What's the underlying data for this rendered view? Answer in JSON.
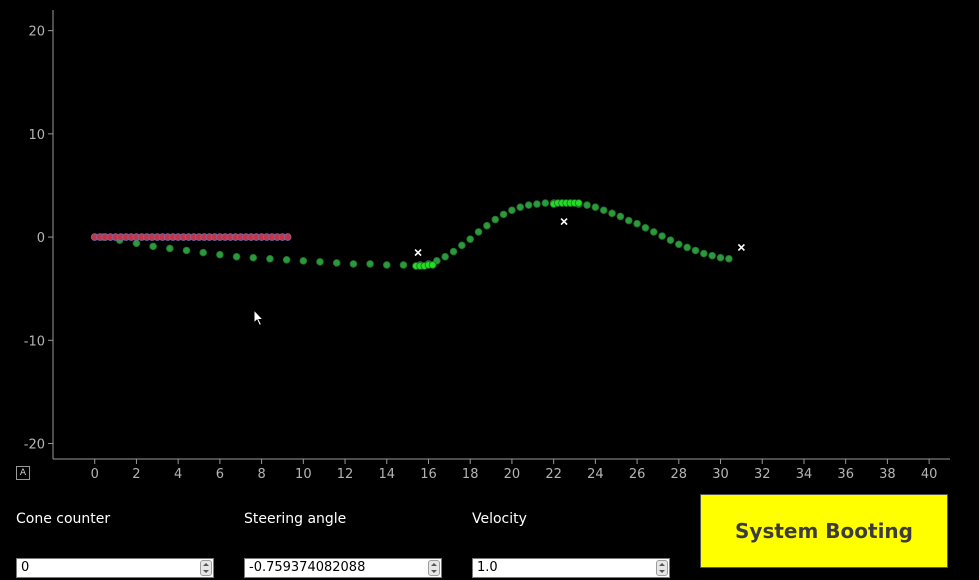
{
  "chart_data": {
    "type": "scatter",
    "xlim": [
      -2,
      41
    ],
    "ylim": [
      -21.5,
      22
    ],
    "x_ticks": [
      0,
      2,
      4,
      6,
      8,
      10,
      12,
      14,
      16,
      18,
      20,
      22,
      24,
      26,
      28,
      30,
      32,
      34,
      36,
      38,
      40
    ],
    "y_ticks": [
      20,
      10,
      0,
      -10,
      -20
    ],
    "grid": false,
    "series": [
      {
        "marker": "circle",
        "color": "#2a9a3a",
        "x": [
          0.4,
          1.2,
          2.0,
          2.8,
          3.6,
          4.4,
          5.2,
          6.0,
          6.8,
          7.6,
          8.4,
          9.2,
          10.0,
          10.8,
          11.6,
          12.4,
          13.2,
          14.0,
          14.8,
          15.6,
          16.0,
          16.4,
          16.8,
          17.2,
          17.6,
          18.0,
          18.4,
          18.8,
          19.2,
          19.6,
          20.0,
          20.4,
          20.8,
          21.2,
          21.6,
          22.0,
          22.4,
          22.8,
          23.2,
          23.6,
          24.0,
          24.4,
          24.8,
          25.2,
          25.6,
          26.0,
          26.4,
          26.8,
          27.2,
          27.6,
          28.0,
          28.4,
          28.8,
          29.2,
          29.6,
          30.0,
          30.4
        ],
        "y": [
          0.0,
          -0.3,
          -0.6,
          -0.9,
          -1.1,
          -1.3,
          -1.5,
          -1.7,
          -1.9,
          -2.0,
          -2.1,
          -2.2,
          -2.3,
          -2.4,
          -2.5,
          -2.6,
          -2.6,
          -2.7,
          -2.7,
          -2.7,
          -2.6,
          -2.3,
          -1.9,
          -1.4,
          -0.8,
          -0.2,
          0.5,
          1.1,
          1.7,
          2.2,
          2.6,
          2.9,
          3.1,
          3.2,
          3.3,
          3.3,
          3.3,
          3.3,
          3.2,
          3.1,
          2.9,
          2.6,
          2.3,
          2.0,
          1.6,
          1.3,
          0.9,
          0.5,
          0.1,
          -0.3,
          -0.7,
          -1.0,
          -1.3,
          -1.6,
          -1.8,
          -2.0,
          -2.1
        ]
      },
      {
        "marker": "circle",
        "color": "#22dd22",
        "x": [
          15.4,
          15.6,
          15.8,
          16.0,
          16.2,
          22.0,
          22.2,
          22.4,
          22.6,
          22.8,
          23.0,
          23.2
        ],
        "y": [
          -2.8,
          -2.8,
          -2.8,
          -2.7,
          -2.7,
          3.2,
          3.3,
          3.3,
          3.3,
          3.3,
          3.3,
          3.3
        ]
      },
      {
        "marker": "circle",
        "color": "#c83246",
        "x": [
          0.0,
          0.25,
          0.5,
          0.75,
          1.0,
          1.25,
          1.5,
          1.75,
          2.0,
          2.25,
          2.5,
          2.75,
          3.0,
          3.25,
          3.5,
          3.75,
          4.0,
          4.25,
          4.5,
          4.75,
          5.0,
          5.25,
          5.5,
          5.75,
          6.0,
          6.25,
          6.5,
          6.75,
          7.0,
          7.25,
          7.5,
          7.75,
          8.0,
          8.25,
          8.5,
          8.75,
          9.0,
          9.25
        ],
        "y": [
          0,
          0,
          0,
          0,
          0,
          0,
          0,
          0,
          0,
          0,
          0,
          0,
          0,
          0,
          0,
          0,
          0,
          0,
          0,
          0,
          0,
          0,
          0,
          0,
          0,
          0,
          0,
          0,
          0,
          0,
          0,
          0,
          0,
          0,
          0,
          0,
          0,
          0
        ]
      },
      {
        "marker": "x",
        "color": "#ffffff",
        "x": [
          15.5,
          22.5,
          31.0
        ],
        "y": [
          -1.5,
          1.5,
          -1.0
        ]
      }
    ]
  },
  "plot_controls": {
    "auto_scale_label": "A"
  },
  "cone_counter": {
    "label": "Cone counter",
    "value": "0"
  },
  "steering_angle": {
    "label": "Steering angle",
    "value": "-0.759374082088"
  },
  "velocity": {
    "label": "Velocity",
    "value": "1.0"
  },
  "status": {
    "text": "System Booting",
    "background": "#ffff00"
  }
}
